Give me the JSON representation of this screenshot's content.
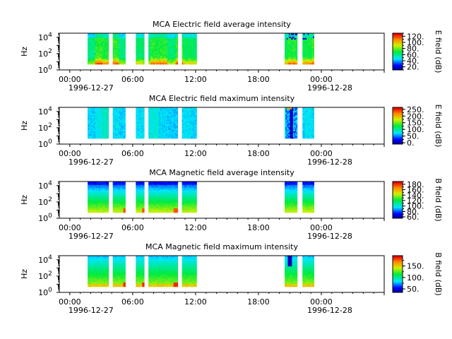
{
  "chart_data": [
    {
      "type": "heatmap",
      "title": "MCA  Electric field average intensity",
      "ylabel": "Hz",
      "colorbar_label": "E field (dB)",
      "colorbar_ticks": [
        "20.",
        "40.",
        "60.",
        "80.",
        "100.",
        "120."
      ],
      "colorbar_range": [
        10,
        130
      ],
      "yticks": [
        "10^0",
        "10^2",
        "10^4"
      ],
      "ylim_log10": [
        0,
        4.5
      ],
      "x_range_hours": [
        -1,
        30
      ],
      "xticks": [
        "00:00",
        "06:00",
        "12:00",
        "18:00",
        "00:00"
      ],
      "x_dates": [
        "1996-12-27",
        "1996-12-28"
      ],
      "data_hours": [
        [
          1.7,
          3.7
        ],
        [
          4.1,
          5.3
        ],
        [
          6.3,
          7.1
        ],
        [
          7.5,
          10.3
        ],
        [
          10.7,
          12.1
        ],
        [
          20.5,
          21.7
        ],
        [
          22.2,
          23.3
        ]
      ],
      "data_freq_log10": [
        0.7,
        4.6
      ]
    },
    {
      "type": "heatmap",
      "title": "MCA  Electric field maximum intensity",
      "ylabel": "Hz",
      "colorbar_label": "E field (dB)",
      "colorbar_ticks": [
        "0.",
        "50.",
        "100.",
        "150.",
        "200.",
        "250."
      ],
      "colorbar_range": [
        -10,
        265
      ],
      "yticks": [
        "10^0",
        "10^2",
        "10^4"
      ],
      "ylim_log10": [
        0,
        4.5
      ],
      "x_range_hours": [
        -1,
        30
      ],
      "xticks": [
        "00:00",
        "06:00",
        "12:00",
        "18:00",
        "00:00"
      ],
      "x_dates": [
        "1996-12-27",
        "1996-12-28"
      ],
      "data_hours": [
        [
          1.7,
          3.7
        ],
        [
          4.1,
          5.3
        ],
        [
          6.3,
          7.1
        ],
        [
          7.5,
          10.3
        ],
        [
          10.7,
          12.1
        ],
        [
          20.5,
          21.7
        ],
        [
          22.2,
          23.3
        ]
      ],
      "data_freq_log10": [
        0.7,
        4.6
      ]
    },
    {
      "type": "heatmap",
      "title": "MCA  Magnetic field average intensity",
      "ylabel": "Hz",
      "colorbar_label": "B field (dB)",
      "colorbar_ticks": [
        "60.",
        "80.",
        "100.",
        "120.",
        "140.",
        "160.",
        "180."
      ],
      "colorbar_range": [
        55,
        190
      ],
      "yticks": [
        "10^0",
        "10^2",
        "10^4"
      ],
      "ylim_log10": [
        0,
        4.5
      ],
      "x_range_hours": [
        -1,
        30
      ],
      "xticks": [
        "00:00",
        "06:00",
        "12:00",
        "18:00",
        "00:00"
      ],
      "x_dates": [
        "1996-12-27",
        "1996-12-28"
      ],
      "data_hours": [
        [
          1.7,
          3.7
        ],
        [
          4.1,
          5.3
        ],
        [
          6.3,
          7.1
        ],
        [
          7.5,
          10.3
        ],
        [
          10.7,
          12.1
        ],
        [
          20.5,
          21.7
        ],
        [
          22.2,
          23.3
        ]
      ],
      "data_freq_log10": [
        0.7,
        4.6
      ]
    },
    {
      "type": "heatmap",
      "title": "MCA  Magnetic field maximum intensity",
      "ylabel": "Hz",
      "colorbar_label": "B field (dB)",
      "colorbar_ticks": [
        "50.",
        "100.",
        "150."
      ],
      "colorbar_range": [
        35,
        195
      ],
      "yticks": [
        "10^0",
        "10^2",
        "10^4"
      ],
      "ylim_log10": [
        0,
        4.5
      ],
      "x_range_hours": [
        -1,
        30
      ],
      "xticks": [
        "00:00",
        "06:00",
        "12:00",
        "18:00",
        "00:00"
      ],
      "x_dates": [
        "1996-12-27",
        "1996-12-28"
      ],
      "data_hours": [
        [
          1.7,
          3.7
        ],
        [
          4.1,
          5.3
        ],
        [
          6.3,
          7.1
        ],
        [
          7.5,
          10.3
        ],
        [
          10.7,
          12.1
        ],
        [
          20.5,
          21.7
        ],
        [
          22.2,
          23.3
        ]
      ],
      "data_freq_log10": [
        0.7,
        4.6
      ]
    }
  ]
}
